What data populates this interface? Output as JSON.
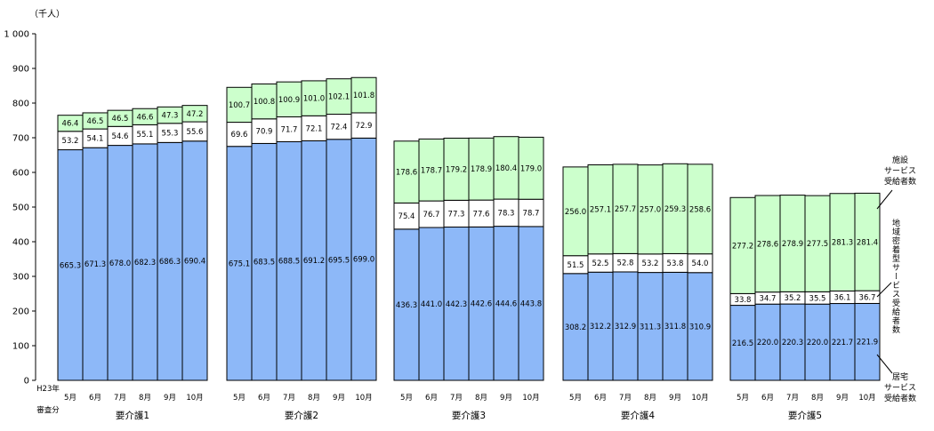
{
  "chart_data": {
    "type": "bar",
    "stacked": true,
    "unit_label": "（千人）",
    "ylim": [
      0,
      1000
    ],
    "yticks": [
      "0",
      "100",
      "200",
      "300",
      "400",
      "500",
      "600",
      "700",
      "800",
      "900",
      "1 000"
    ],
    "grid": false,
    "colors": {
      "home": "#8DB8F8",
      "community": "#FFFFFF",
      "facility": "#CCFFCC",
      "border": "#000000"
    },
    "first_month_label_lines": [
      "H23年",
      "5月",
      "審査分"
    ],
    "series_labels": {
      "facility": [
        "施設",
        "サービス",
        "受給者数"
      ],
      "community": [
        "地域密着型サービス受給者数"
      ],
      "home": [
        "居宅",
        "サービス",
        "受給者数"
      ]
    },
    "groups": [
      {
        "name": "要介護1",
        "months": [
          "5月",
          "6月",
          "7月",
          "8月",
          "9月",
          "10月"
        ],
        "home": [
          665.3,
          671.3,
          678.0,
          682.3,
          686.3,
          690.4
        ],
        "community": [
          53.2,
          54.1,
          54.6,
          55.1,
          55.3,
          55.6
        ],
        "facility": [
          46.4,
          46.5,
          46.5,
          46.6,
          47.3,
          47.2
        ]
      },
      {
        "name": "要介護2",
        "months": [
          "5月",
          "6月",
          "7月",
          "8月",
          "9月",
          "10月"
        ],
        "home": [
          675.1,
          683.5,
          688.5,
          691.2,
          695.5,
          699.0
        ],
        "community": [
          69.6,
          70.9,
          71.7,
          72.1,
          72.4,
          72.9
        ],
        "facility": [
          100.7,
          100.8,
          100.9,
          101.0,
          102.1,
          101.8
        ]
      },
      {
        "name": "要介護3",
        "months": [
          "5月",
          "6月",
          "7月",
          "8月",
          "9月",
          "10月"
        ],
        "home": [
          436.3,
          441.0,
          442.3,
          442.6,
          444.6,
          443.8
        ],
        "community": [
          75.4,
          76.7,
          77.3,
          77.6,
          78.3,
          78.7
        ],
        "facility": [
          178.6,
          178.7,
          179.2,
          178.9,
          180.4,
          179.0
        ]
      },
      {
        "name": "要介護4",
        "months": [
          "5月",
          "6月",
          "7月",
          "8月",
          "9月",
          "10月"
        ],
        "home": [
          308.2,
          312.2,
          312.9,
          311.3,
          311.8,
          310.9
        ],
        "community": [
          51.5,
          52.5,
          52.8,
          53.2,
          53.8,
          54.0
        ],
        "facility": [
          256.0,
          257.1,
          257.7,
          257.0,
          259.3,
          258.6
        ]
      },
      {
        "name": "要介護5",
        "months": [
          "5月",
          "6月",
          "7月",
          "8月",
          "9月",
          "10月"
        ],
        "home": [
          216.5,
          220.0,
          220.3,
          220.0,
          221.7,
          221.9
        ],
        "community": [
          33.8,
          34.7,
          35.2,
          35.5,
          36.1,
          36.7
        ],
        "facility": [
          277.2,
          278.6,
          278.9,
          277.5,
          281.3,
          281.4
        ]
      }
    ]
  }
}
